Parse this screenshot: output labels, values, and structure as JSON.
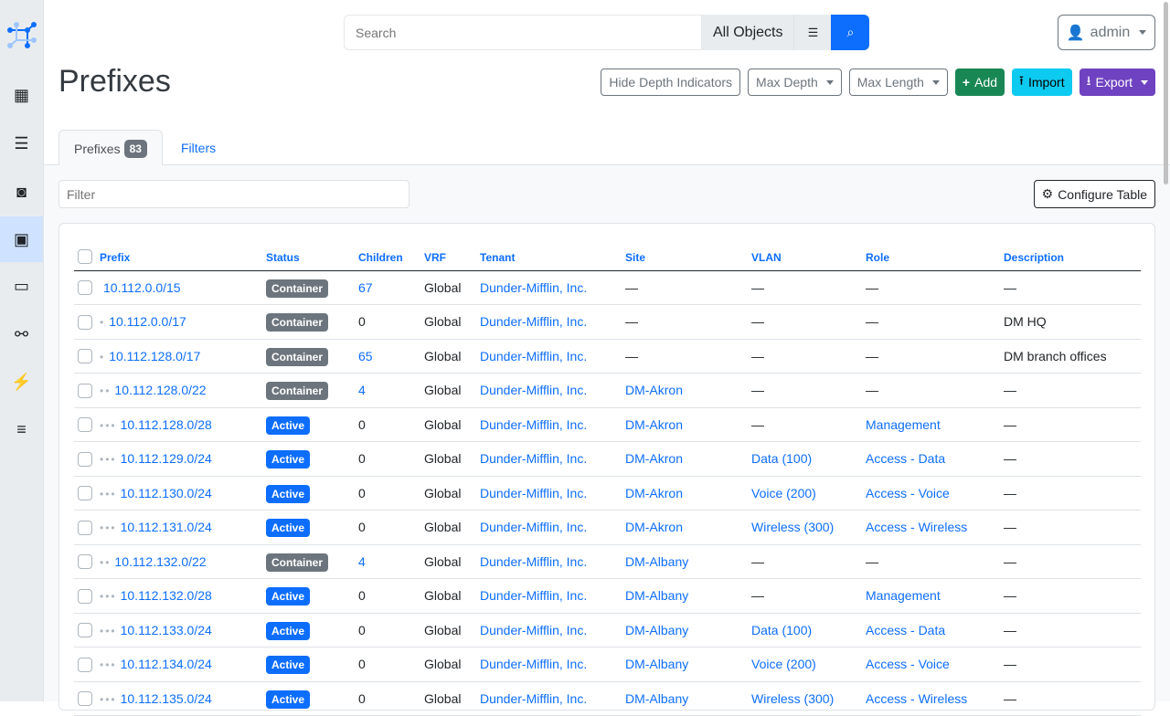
{
  "search": {
    "placeholder": "Search",
    "scope": "All Objects"
  },
  "user": {
    "name": "admin"
  },
  "page": {
    "title": "Prefixes"
  },
  "actions": {
    "hide_depth": "Hide Depth Indicators",
    "max_depth": "Max Depth",
    "max_length": "Max Length",
    "add": "Add",
    "import": "Import",
    "export": "Export"
  },
  "tabs": {
    "prefixes": "Prefixes",
    "count": "83",
    "filters": "Filters"
  },
  "filter": {
    "placeholder": "Filter"
  },
  "configure": "Configure Table",
  "colors": {
    "container": "#6c757d",
    "active": "#0d6efd",
    "add": "#198754",
    "import": "#0dcaf0",
    "export": "#6f42c1"
  },
  "columns": [
    "Prefix",
    "Status",
    "Children",
    "VRF",
    "Tenant",
    "Site",
    "VLAN",
    "Role",
    "Description"
  ],
  "rows": [
    {
      "depth": 0,
      "prefix": "10.112.0.0/15",
      "status": "Container",
      "children": "67",
      "vrf": "Global",
      "tenant": "Dunder-Mifflin, Inc.",
      "site": "—",
      "vlan": "—",
      "role": "—",
      "description": "—"
    },
    {
      "depth": 1,
      "prefix": "10.112.0.0/17",
      "status": "Container",
      "children": "0",
      "vrf": "Global",
      "tenant": "Dunder-Mifflin, Inc.",
      "site": "—",
      "vlan": "—",
      "role": "—",
      "description": "DM HQ"
    },
    {
      "depth": 1,
      "prefix": "10.112.128.0/17",
      "status": "Container",
      "children": "65",
      "vrf": "Global",
      "tenant": "Dunder-Mifflin, Inc.",
      "site": "—",
      "vlan": "—",
      "role": "—",
      "description": "DM branch offices"
    },
    {
      "depth": 2,
      "prefix": "10.112.128.0/22",
      "status": "Container",
      "children": "4",
      "vrf": "Global",
      "tenant": "Dunder-Mifflin, Inc.",
      "site": "DM-Akron",
      "vlan": "—",
      "role": "—",
      "description": "—"
    },
    {
      "depth": 3,
      "prefix": "10.112.128.0/28",
      "status": "Active",
      "children": "0",
      "vrf": "Global",
      "tenant": "Dunder-Mifflin, Inc.",
      "site": "DM-Akron",
      "vlan": "—",
      "role": "Management",
      "description": "—"
    },
    {
      "depth": 3,
      "prefix": "10.112.129.0/24",
      "status": "Active",
      "children": "0",
      "vrf": "Global",
      "tenant": "Dunder-Mifflin, Inc.",
      "site": "DM-Akron",
      "vlan": "Data (100)",
      "role": "Access - Data",
      "description": "—"
    },
    {
      "depth": 3,
      "prefix": "10.112.130.0/24",
      "status": "Active",
      "children": "0",
      "vrf": "Global",
      "tenant": "Dunder-Mifflin, Inc.",
      "site": "DM-Akron",
      "vlan": "Voice (200)",
      "role": "Access - Voice",
      "description": "—"
    },
    {
      "depth": 3,
      "prefix": "10.112.131.0/24",
      "status": "Active",
      "children": "0",
      "vrf": "Global",
      "tenant": "Dunder-Mifflin, Inc.",
      "site": "DM-Akron",
      "vlan": "Wireless (300)",
      "role": "Access - Wireless",
      "description": "—"
    },
    {
      "depth": 2,
      "prefix": "10.112.132.0/22",
      "status": "Container",
      "children": "4",
      "vrf": "Global",
      "tenant": "Dunder-Mifflin, Inc.",
      "site": "DM-Albany",
      "vlan": "—",
      "role": "—",
      "description": "—"
    },
    {
      "depth": 3,
      "prefix": "10.112.132.0/28",
      "status": "Active",
      "children": "0",
      "vrf": "Global",
      "tenant": "Dunder-Mifflin, Inc.",
      "site": "DM-Albany",
      "vlan": "—",
      "role": "Management",
      "description": "—"
    },
    {
      "depth": 3,
      "prefix": "10.112.133.0/24",
      "status": "Active",
      "children": "0",
      "vrf": "Global",
      "tenant": "Dunder-Mifflin, Inc.",
      "site": "DM-Albany",
      "vlan": "Data (100)",
      "role": "Access - Data",
      "description": "—"
    },
    {
      "depth": 3,
      "prefix": "10.112.134.0/24",
      "status": "Active",
      "children": "0",
      "vrf": "Global",
      "tenant": "Dunder-Mifflin, Inc.",
      "site": "DM-Albany",
      "vlan": "Voice (200)",
      "role": "Access - Voice",
      "description": "—"
    },
    {
      "depth": 3,
      "prefix": "10.112.135.0/24",
      "status": "Active",
      "children": "0",
      "vrf": "Global",
      "tenant": "Dunder-Mifflin, Inc.",
      "site": "DM-Albany",
      "vlan": "Wireless (300)",
      "role": "Access - Wireless",
      "description": "—"
    }
  ]
}
